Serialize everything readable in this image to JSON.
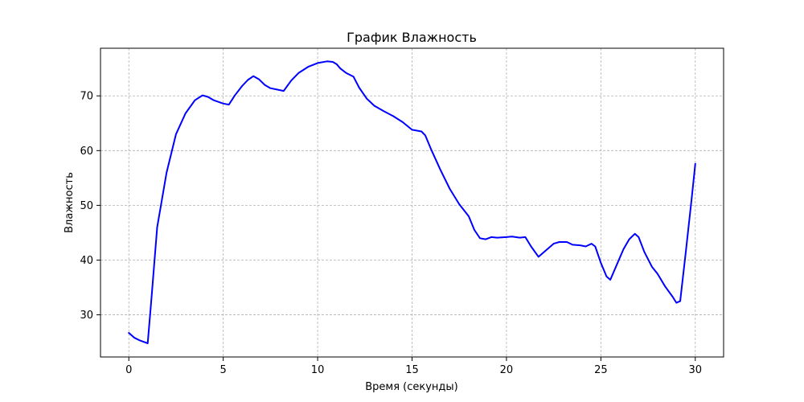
{
  "chart_data": {
    "type": "line",
    "title": "График Влажность",
    "xlabel": "Время (секунды)",
    "ylabel": "Влажность",
    "xlim": [
      -1.5,
      31.5
    ],
    "ylim": [
      22.3,
      78.7
    ],
    "xticks": [
      0,
      5,
      10,
      15,
      20,
      25,
      30
    ],
    "yticks": [
      30,
      40,
      50,
      60,
      70
    ],
    "grid": true,
    "legend": "none",
    "colors": {
      "line": "#0000ff",
      "grid": "#b0b0b0",
      "axes": "#000000"
    },
    "series": [
      {
        "x": [
          0,
          0.3,
          0.6,
          1.0,
          1.2,
          1.5,
          2.0,
          2.5,
          3.0,
          3.5,
          3.9,
          4.2,
          4.5,
          5.0,
          5.3,
          5.6,
          6.0,
          6.3,
          6.6,
          6.9,
          7.2,
          7.5,
          7.8,
          8.2,
          8.6,
          9.0,
          9.5,
          10.0,
          10.5,
          10.8,
          11.0,
          11.2,
          11.5,
          11.9,
          12.2,
          12.6,
          13.0,
          13.5,
          14.0,
          14.5,
          15.0,
          15.5,
          15.7,
          16.0,
          16.5,
          17.0,
          17.5,
          18.0,
          18.3,
          18.6,
          18.9,
          19.2,
          19.5,
          20.0,
          20.3,
          20.7,
          21.0,
          21.3,
          21.7,
          22.1,
          22.5,
          22.8,
          23.2,
          23.5,
          23.9,
          24.2,
          24.5,
          24.7,
          25.0,
          25.3,
          25.5,
          25.8,
          26.2,
          26.5,
          26.8,
          27.0,
          27.3,
          27.7,
          28.0,
          28.4,
          28.8,
          29.0,
          29.2,
          29.5,
          29.8,
          30.0
        ],
        "y": [
          26.7,
          25.8,
          25.3,
          24.8,
          33.0,
          46.0,
          56.0,
          63.0,
          66.8,
          69.2,
          70.1,
          69.8,
          69.2,
          68.6,
          68.4,
          70.0,
          71.8,
          72.9,
          73.6,
          73.0,
          72.0,
          71.4,
          71.2,
          70.9,
          72.8,
          74.2,
          75.3,
          76.0,
          76.3,
          76.2,
          75.8,
          75.0,
          74.2,
          73.5,
          71.5,
          69.5,
          68.2,
          67.2,
          66.3,
          65.2,
          63.8,
          63.5,
          62.8,
          60.3,
          56.5,
          53.0,
          50.2,
          48.0,
          45.5,
          44.0,
          43.8,
          44.2,
          44.1,
          44.2,
          44.3,
          44.1,
          44.2,
          42.5,
          40.6,
          41.8,
          43.0,
          43.3,
          43.3,
          42.8,
          42.7,
          42.5,
          43.0,
          42.5,
          39.5,
          37.0,
          36.4,
          38.8,
          42.0,
          43.8,
          44.8,
          44.2,
          41.5,
          38.8,
          37.5,
          35.2,
          33.3,
          32.2,
          32.5,
          41.5,
          51.0,
          57.6
        ]
      }
    ]
  }
}
